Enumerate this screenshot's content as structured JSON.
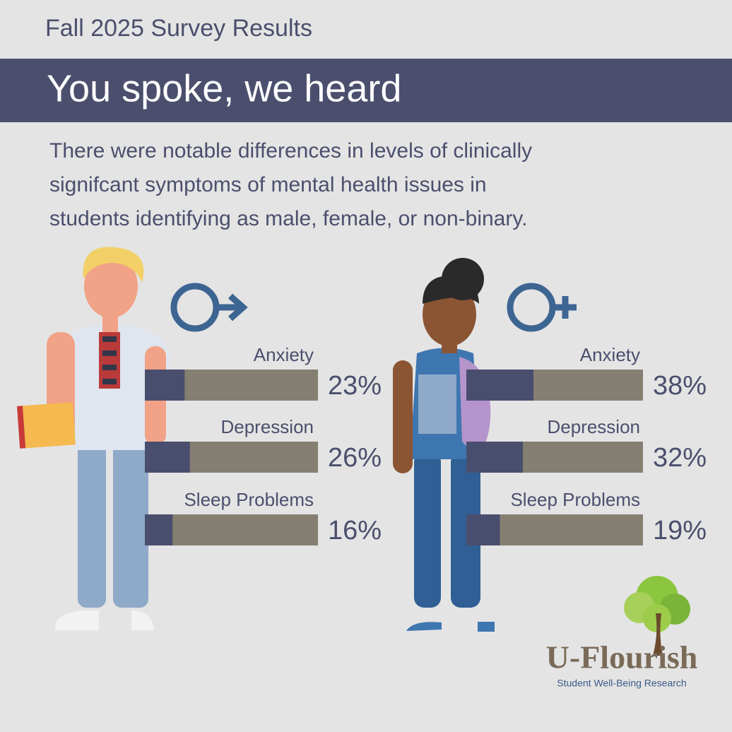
{
  "header": {
    "eyebrow": "Fall 2025 Survey Results",
    "title": "You spoke, we heard"
  },
  "intro": [
    "There were notable differences in levels of clinically",
    "signifcant symptoms of mental health issues in",
    "students identifying as male, female, or non-binary."
  ],
  "chart_data": [
    {
      "type": "bar",
      "categories": [
        "Anxiety",
        "Depression",
        "Sleep Problems"
      ],
      "values": [
        23,
        26,
        16
      ],
      "value_labels": [
        "23%",
        "26%",
        "16%"
      ],
      "xlim": [
        0,
        100
      ],
      "color": "#4a4e6e",
      "track_color": "#857f72"
    },
    {
      "type": "bar",
      "categories": [
        "Anxiety",
        "Depression",
        "Sleep Problems"
      ],
      "values": [
        38,
        32,
        19
      ],
      "value_labels": [
        "38%",
        "32%",
        "19%"
      ],
      "xlim": [
        0,
        100
      ],
      "color": "#4a4e6e",
      "track_color": "#857f72"
    }
  ],
  "logo": {
    "name": "U-Flourish",
    "tagline": "Student Well-Being Research"
  }
}
